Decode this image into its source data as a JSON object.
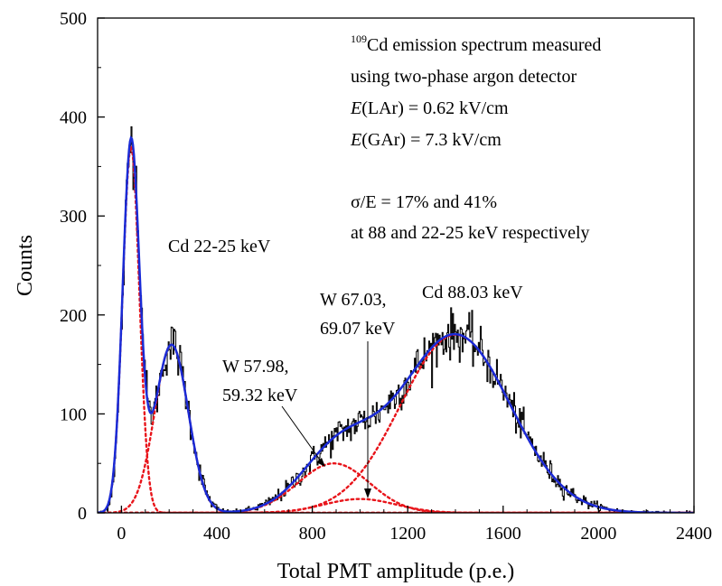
{
  "chart_data": {
    "type": "line",
    "xlabel": "Total PMT amplitude (p.e.)",
    "ylabel": "Counts",
    "xlim": [
      -100,
      2400
    ],
    "ylim": [
      0,
      500
    ],
    "x_ticks": [
      "0",
      "400",
      "800",
      "1200",
      "1600",
      "2000",
      "2400"
    ],
    "y_ticks": [
      "0",
      "100",
      "200",
      "300",
      "400",
      "500"
    ],
    "grid": false,
    "components": [
      {
        "type": "gaussian",
        "amplitude": 370,
        "mean": 40,
        "sigma": 35,
        "style": "dotted",
        "color": "#e8141a"
      },
      {
        "type": "gaussian",
        "amplitude": 170,
        "mean": 210,
        "sigma": 70,
        "style": "dotted",
        "color": "#e8141a"
      },
      {
        "type": "gaussian",
        "amplitude": 50,
        "mean": 890,
        "sigma": 150,
        "style": "dotted",
        "color": "#e8141a"
      },
      {
        "type": "gaussian",
        "amplitude": 14,
        "mean": 1000,
        "sigma": 150,
        "style": "dotted",
        "color": "#e8141a"
      },
      {
        "type": "gaussian",
        "amplitude": 180,
        "mean": 1400,
        "sigma": 230,
        "style": "dotted",
        "color": "#e8141a"
      }
    ],
    "fit_color": "#1a2bd6",
    "data_color": "#000000",
    "annotations": {
      "info_line1_sup": "109",
      "info_line1": "Cd emission spectrum measured",
      "info_line2": "using two-phase argon detector",
      "info_line3_italic": "E",
      "info_line3": "(LAr) = 0.62 kV/cm",
      "info_line4_italic": "E",
      "info_line4": "(GAr) = 7.3 kV/cm",
      "info_line5": "σ/E = 17% and 41%",
      "info_line6": "at 88 and 22-25 keV respectively",
      "cd22": "Cd 22-25 keV",
      "w58_line1": "W 57.98,",
      "w58_line2": "59.32 keV",
      "w67_line1": "W 67.03,",
      "w67_line2": "69.07 keV",
      "cd88": "Cd 88.03 keV"
    }
  }
}
